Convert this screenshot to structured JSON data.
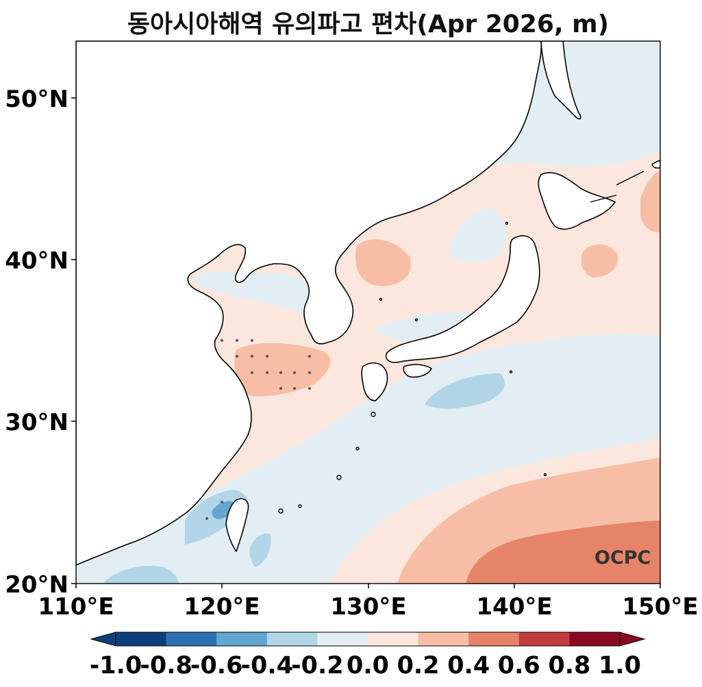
{
  "chart_data": {
    "type": "heatmap",
    "title": "동아시아해역 유의파고 편차(Apr 2026, m)",
    "x_ticks": [
      "110°E",
      "120°E",
      "130°E",
      "140°E",
      "150°E"
    ],
    "y_ticks": [
      "20°N",
      "30°N",
      "40°N",
      "50°N"
    ],
    "lon_range": [
      110,
      150
    ],
    "lat_range": [
      20,
      53.5
    ],
    "colorbar": {
      "levels": [
        -1.0,
        -0.8,
        -0.6,
        -0.4,
        -0.2,
        0.0,
        0.2,
        0.4,
        0.6,
        0.8,
        1.0
      ],
      "labels": [
        "-1.0",
        "-0.8",
        "-0.6",
        "-0.4",
        "-0.2",
        "0.0",
        "0.2",
        "0.4",
        "0.6",
        "0.8",
        "1.0"
      ],
      "colors": [
        "#0f3f7a",
        "#2c72b3",
        "#63a7d0",
        "#b2d5e8",
        "#e2eef4",
        "#fbe7dd",
        "#f8bea5",
        "#e68469",
        "#c23b3d",
        "#8a0a24"
      ],
      "extend": "both"
    },
    "watermark": "OCPC"
  }
}
